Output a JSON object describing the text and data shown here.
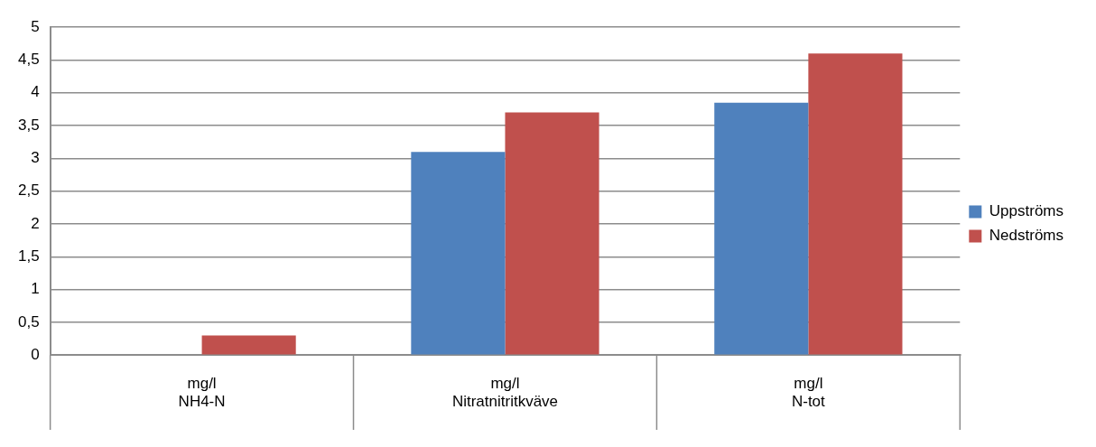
{
  "chart_data": {
    "type": "bar",
    "categories": [
      "mg/l\nNH4-N",
      "mg/l\nNitratnitritkväve",
      "mg/l\nN-tot"
    ],
    "series": [
      {
        "name": "Uppströms",
        "color": "#4f81bd",
        "values": [
          0,
          3.1,
          3.85
        ]
      },
      {
        "name": "Nedströms",
        "color": "#c0504d",
        "values": [
          0.3,
          3.7,
          4.6
        ]
      }
    ],
    "ylim": [
      0,
      5
    ],
    "yticks": [
      0,
      {
        "value": 0.5,
        "label": "0,5"
      },
      1,
      {
        "value": 1.5,
        "label": "1,5"
      },
      2,
      {
        "value": 2.5,
        "label": "2,5"
      },
      3,
      {
        "value": 3.5,
        "label": "3,5"
      },
      4,
      {
        "value": 4.5,
        "label": "4,5"
      },
      5
    ],
    "grid": "y",
    "legend": "right"
  }
}
